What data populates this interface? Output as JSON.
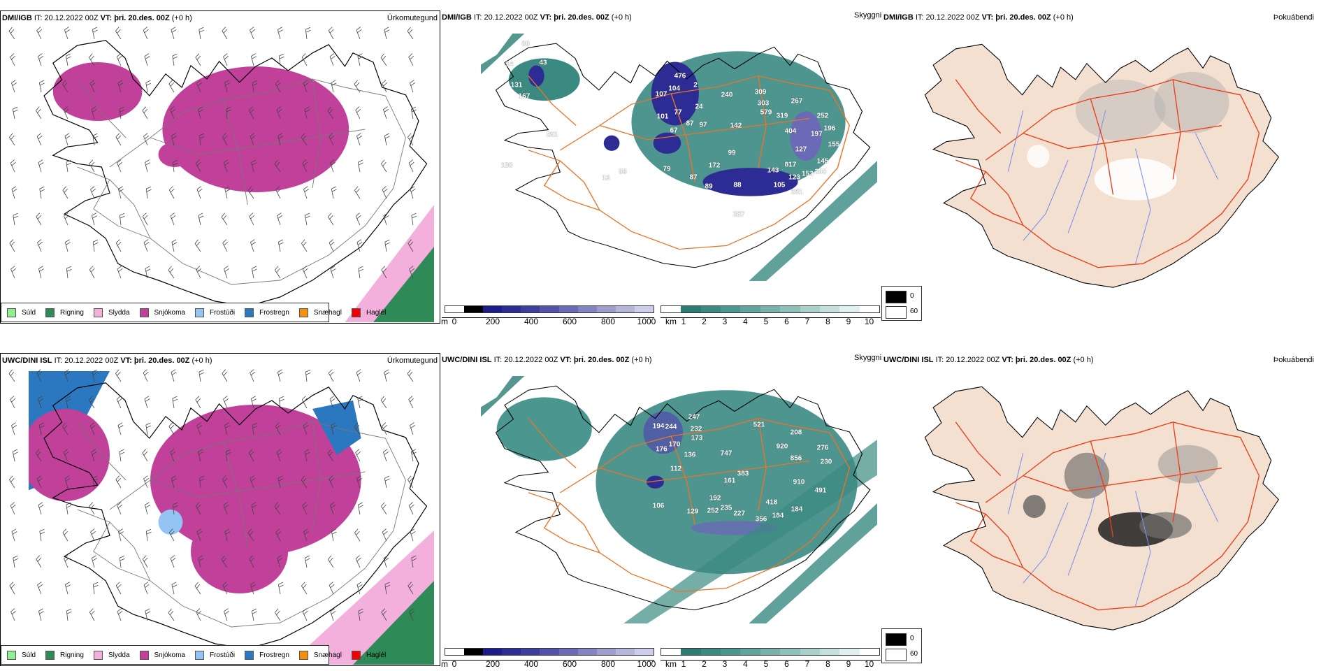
{
  "rows": [
    {
      "model": "DMI/IGB",
      "it": "IT: 20.12.2022 00Z",
      "vt": "VT: þri. 20.des. 00Z",
      "offset": "(+0 h)"
    },
    {
      "model": "UWC/DINI ISL",
      "it": "IT: 20.12.2022 00Z",
      "vt": "VT: þri. 20.des. 00Z",
      "offset": "(+0 h)"
    }
  ],
  "panels": {
    "precip_type": "Úrkomutegund",
    "visibility": "Skyggni",
    "fog": "Þokuábendi"
  },
  "precip_legend": [
    {
      "label": "Súld",
      "color": "#90ee90"
    },
    {
      "label": "Rigning",
      "color": "#2e8b57"
    },
    {
      "label": "Slydda",
      "color": "#f4b0dc"
    },
    {
      "label": "Snjókoma",
      "color": "#c0409a"
    },
    {
      "label": "Frostúði",
      "color": "#94c4f4"
    },
    {
      "label": "Frostregn",
      "color": "#2c78c0"
    },
    {
      "label": "Snæhagl",
      "color": "#f49010"
    },
    {
      "label": "Haglél",
      "color": "#f00000"
    }
  ],
  "cloud_base_bar": {
    "unit": "m",
    "ticks": [
      "0",
      "200",
      "400",
      "600",
      "800",
      "1000"
    ],
    "colors": [
      "#ffffff",
      "#000000",
      "#1c1c8c",
      "#2c2c94",
      "#3e3e9e",
      "#5252aa",
      "#6a6ab6",
      "#8484c2",
      "#9e9ece",
      "#b6b6da",
      "#ceceec"
    ]
  },
  "visibility_bar": {
    "unit": "km",
    "ticks": [
      "1",
      "2",
      "3",
      "4",
      "5",
      "6",
      "7",
      "8",
      "9",
      "10"
    ],
    "colors": [
      "#ffffff",
      "#2a7c74",
      "#3a8a82",
      "#4c9690",
      "#60a29c",
      "#78b0aa",
      "#90c0ba",
      "#aad0cc",
      "#c4e0dc",
      "#e0f0ee",
      "#ffffff"
    ]
  },
  "fog_legend": {
    "values": [
      "0",
      "60"
    ],
    "colors": [
      "#000000",
      "#ffffff"
    ]
  },
  "colors": {
    "road": "#e8742a",
    "road_fog": "#e8401a",
    "river": "#7c90f0",
    "land_fog": "#f4e0d0",
    "coast": "#000000"
  },
  "labels_top": [
    "80",
    "14",
    "43",
    "131",
    "167",
    "251",
    "130",
    "13",
    "476",
    "107",
    "104",
    "2",
    "240",
    "309",
    "303",
    "579",
    "319",
    "267",
    "101",
    "77",
    "24",
    "87",
    "97",
    "142",
    "404",
    "252",
    "196",
    "197",
    "155",
    "67",
    "127",
    "99",
    "172",
    "817",
    "145",
    "143",
    "250",
    "153",
    "123",
    "79",
    "87",
    "89",
    "88",
    "105",
    "251",
    "287",
    "98"
  ],
  "labels_bottom": [
    "247",
    "194",
    "244",
    "232",
    "173",
    "170",
    "176",
    "136",
    "112",
    "747",
    "521",
    "208",
    "920",
    "856",
    "276",
    "230",
    "383",
    "161",
    "910",
    "491",
    "192",
    "418",
    "106",
    "129",
    "252",
    "235",
    "227",
    "356",
    "184",
    "184"
  ]
}
